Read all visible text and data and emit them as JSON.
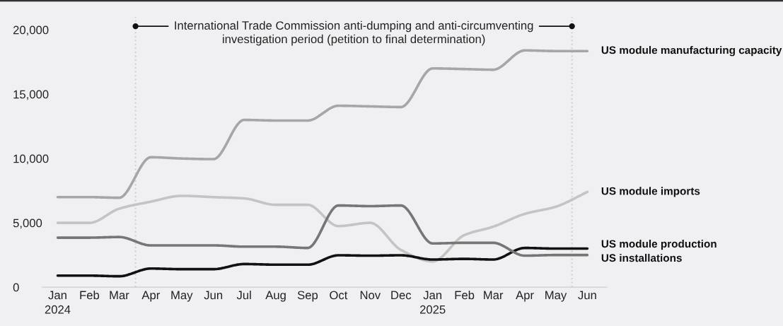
{
  "chart_data": {
    "type": "line",
    "x": [
      "2024-01",
      "2024-02",
      "2024-03",
      "2024-04",
      "2024-05",
      "2024-06",
      "2024-07",
      "2024-08",
      "2024-09",
      "2024-10",
      "2024-11",
      "2024-12",
      "2025-01",
      "2025-02",
      "2025-03",
      "2025-04",
      "2025-05",
      "2025-06"
    ],
    "series": [
      {
        "name": "US module manufacturing capacity",
        "color": "#a6a6a6",
        "values": [
          7000,
          7000,
          6950,
          10100,
          10000,
          9950,
          13000,
          12950,
          12950,
          14100,
          14050,
          14000,
          17000,
          16950,
          16900,
          18400,
          18350,
          18350
        ]
      },
      {
        "name": "US module imports",
        "color": "#c4c4c4",
        "values": [
          5000,
          5000,
          6100,
          6650,
          7100,
          7000,
          6900,
          6400,
          6400,
          4750,
          5000,
          2900,
          2000,
          4050,
          4700,
          5700,
          6250,
          7400
        ]
      },
      {
        "name": "US module production",
        "color": "#111111",
        "values": [
          900,
          900,
          850,
          1450,
          1400,
          1400,
          1800,
          1750,
          1750,
          2480,
          2450,
          2480,
          2150,
          2200,
          2150,
          3050,
          3000,
          3000
        ]
      },
      {
        "name": "US installations",
        "color": "#767676",
        "values": [
          3850,
          3850,
          3900,
          3250,
          3250,
          3250,
          3150,
          3150,
          3050,
          6350,
          6300,
          6350,
          3400,
          3450,
          3450,
          2450,
          2500,
          2500
        ]
      }
    ],
    "xlim": [
      "2023-12-17",
      "2025-06-20"
    ],
    "xticks": [
      {
        "value": "2024-01",
        "label": "Jan\n2024"
      },
      {
        "value": "2024-02",
        "label": "Feb"
      },
      {
        "value": "2024-03",
        "label": "Mar"
      },
      {
        "value": "2024-04",
        "label": "Apr"
      },
      {
        "value": "2024-05",
        "label": "May"
      },
      {
        "value": "2024-06",
        "label": "Jun"
      },
      {
        "value": "2024-07",
        "label": "Jul"
      },
      {
        "value": "2024-08",
        "label": "Aug"
      },
      {
        "value": "2024-09",
        "label": "Sep"
      },
      {
        "value": "2024-10",
        "label": "Oct"
      },
      {
        "value": "2024-11",
        "label": "Nov"
      },
      {
        "value": "2024-12",
        "label": "Dec"
      },
      {
        "value": "2025-01",
        "label": "Jan\n2025"
      },
      {
        "value": "2025-02",
        "label": "Feb"
      },
      {
        "value": "2025-03",
        "label": "Mar"
      },
      {
        "value": "2025-04",
        "label": "Apr"
      },
      {
        "value": "2025-05",
        "label": "May"
      },
      {
        "value": "2025-06",
        "label": "Jun"
      }
    ],
    "ylim": [
      0,
      21000
    ],
    "yticks": [
      0,
      {
        "value": 5000,
        "label": "5,000"
      },
      {
        "value": 10000,
        "label": "10,000"
      },
      {
        "value": 15000,
        "label": "15,000"
      },
      {
        "value": 20000,
        "label": "20,000"
      }
    ],
    "ref_lines": [
      {
        "axis": "x",
        "value": "2024-03-17",
        "color": "#d0d0d0",
        "line_style": "dotted",
        "label": "International Trade Commission anti-dumping and anti-circumventing\ninvestigation period (petition to final determination)"
      },
      {
        "axis": "x",
        "value": "2025-05-17",
        "color": "#d0d0d0",
        "line_style": "dotted"
      }
    ],
    "grid": false,
    "legend": false,
    "line_style": "solid"
  }
}
